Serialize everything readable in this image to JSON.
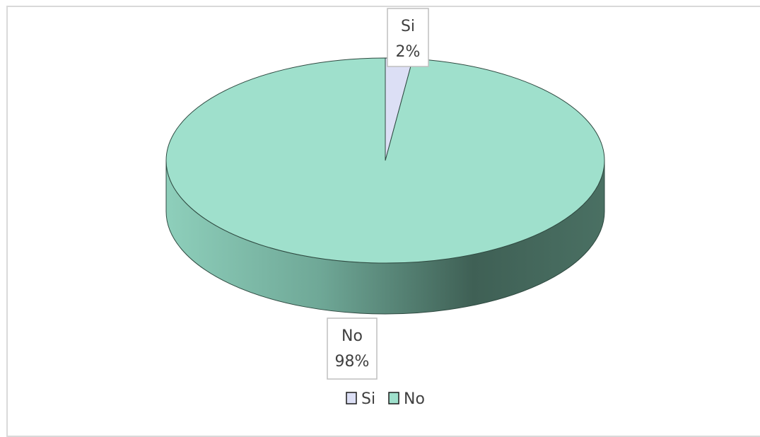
{
  "chart_data": {
    "type": "pie",
    "style": "3d",
    "title": "",
    "slices": [
      {
        "label": "Si",
        "value": 2,
        "percent_label": "2%",
        "color": "#dcdff5"
      },
      {
        "label": "No",
        "value": 98,
        "percent_label": "98%",
        "color": "#9fe0cc"
      }
    ],
    "legend": {
      "placement": "bottom",
      "entries": [
        "Si",
        "No"
      ]
    }
  }
}
